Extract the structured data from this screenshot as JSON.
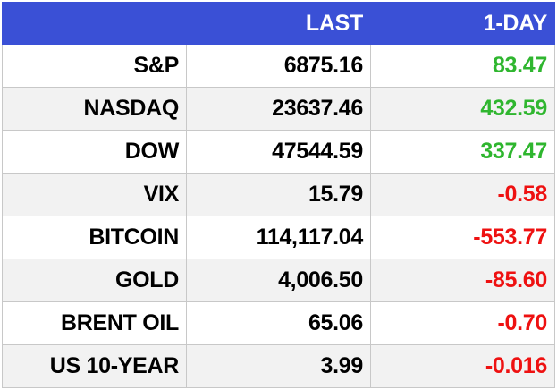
{
  "header": {
    "name_label": "",
    "last_label": "LAST",
    "change_label": "1-DAY"
  },
  "rows": [
    {
      "name": "S&P",
      "last": "6875.16",
      "change": "83.47",
      "direction": "up"
    },
    {
      "name": "NASDAQ",
      "last": "23637.46",
      "change": "432.59",
      "direction": "up"
    },
    {
      "name": "DOW",
      "last": "47544.59",
      "change": "337.47",
      "direction": "up"
    },
    {
      "name": "VIX",
      "last": "15.79",
      "change": "-0.58",
      "direction": "down"
    },
    {
      "name": "BITCOIN",
      "last": "114,117.04",
      "change": "-553.77",
      "direction": "down"
    },
    {
      "name": "GOLD",
      "last": "4,006.50",
      "change": "-85.60",
      "direction": "down"
    },
    {
      "name": "BRENT OIL",
      "last": "65.06",
      "change": "-0.70",
      "direction": "down"
    },
    {
      "name": "US 10-YEAR",
      "last": "3.99",
      "change": "-0.016",
      "direction": "down"
    }
  ],
  "colors": {
    "header_bg": "#3a50d6",
    "header_text": "#ffffff",
    "positive": "#2fb62f",
    "negative": "#ee1111",
    "row_alt_bg": "#f2f2f2"
  }
}
